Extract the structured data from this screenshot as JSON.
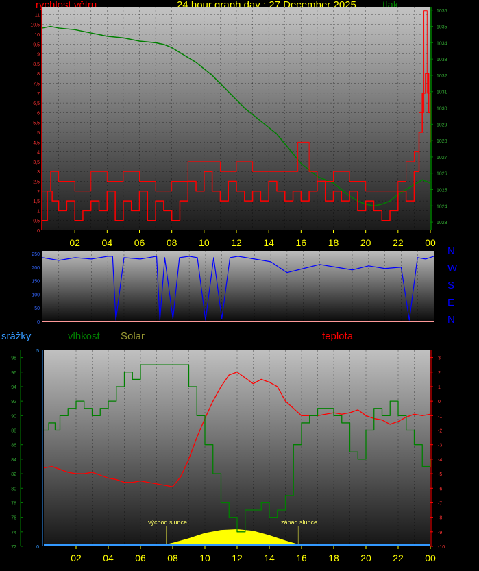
{
  "colors": {
    "wind": "#ff0000",
    "pressure": "#008000",
    "wind_dir": "#0000ff",
    "humidity": "#008000",
    "temperature": "#ff0000",
    "solar": "#ffff00",
    "rain": "#3399ff",
    "axis_hour": "#ffff00",
    "compass": "#0000ff"
  },
  "header": {
    "wind_title": "rychlost větru",
    "graph_title": "24 hour graph day : 27 December 2025",
    "pressure_title": "tlak"
  },
  "hour_ticks": [
    "02",
    "04",
    "06",
    "08",
    "10",
    "12",
    "14",
    "16",
    "18",
    "20",
    "22",
    "00"
  ],
  "compass": [
    "N",
    "W",
    "S",
    "E",
    "N"
  ],
  "lower_titles": {
    "rain": "srážky",
    "humidity": "vlhkost",
    "solar": "Solar",
    "temperature": "teplota"
  },
  "annotations": {
    "sunrise": "východ slunce",
    "sunset": "západ slunce"
  },
  "chart_data": [
    {
      "type": "line",
      "name": "wind-pressure",
      "x_unit": "hour",
      "xlim": [
        0,
        24
      ],
      "y_left": {
        "ticks": [
          "0",
          "0,5",
          "1",
          "1,5",
          "2",
          "2,5",
          "3",
          "3,5",
          "4",
          "4,5",
          "5",
          "5,5",
          "6",
          "6,5",
          "7",
          "7,5",
          "8",
          "8,5",
          "9",
          "9,5",
          "10",
          "10,5",
          "11"
        ],
        "ylim": [
          0,
          11.4
        ]
      },
      "y_right": {
        "ticks": [
          "1023",
          "1024",
          "1025",
          "1026",
          "1027",
          "1028",
          "1029",
          "1030",
          "1031",
          "1032",
          "1033",
          "1034",
          "1035",
          "1036"
        ],
        "ylim": [
          1022.5,
          1036.2
        ]
      },
      "series": [
        {
          "name": "rychlost větru",
          "axis": "left",
          "x": [
            0,
            0.3,
            0.6,
            1,
            1.5,
            2,
            2.5,
            3,
            3.5,
            4,
            4.5,
            5,
            5.5,
            6,
            6.5,
            7,
            7.5,
            8,
            8.5,
            9,
            9.5,
            10,
            10.5,
            11,
            11.5,
            12,
            12.5,
            13,
            13.5,
            14,
            14.5,
            15,
            15.5,
            16,
            16.5,
            17,
            17.5,
            18,
            18.5,
            19,
            19.5,
            20,
            20.5,
            21,
            21.5,
            22,
            22.5,
            23,
            23.3,
            23.5,
            23.7,
            23.9,
            24
          ],
          "y": [
            0.5,
            2,
            1.5,
            1,
            1.5,
            0.5,
            1,
            1.5,
            1,
            2,
            0.5,
            1.5,
            1,
            2,
            0.5,
            1.5,
            1,
            0.5,
            1.5,
            2.5,
            2,
            3,
            2,
            1.5,
            2.5,
            2,
            1.5,
            2,
            1.5,
            2.5,
            2,
            1.5,
            2,
            1.5,
            2,
            2.5,
            1.5,
            2,
            1.5,
            2,
            1,
            1.5,
            1,
            0.5,
            1,
            2,
            1.5,
            3,
            5,
            7,
            8,
            6,
            4.5
          ]
        },
        {
          "name": "wind gust",
          "axis": "left",
          "x": [
            0,
            0.5,
            1,
            2,
            3,
            4,
            5,
            6,
            7,
            8,
            9,
            10,
            11,
            12,
            13,
            14,
            15,
            15.8,
            16.5,
            17,
            18,
            19,
            20,
            21,
            22,
            22.5,
            23,
            23.3,
            23.6,
            23.8,
            24
          ],
          "y": [
            2,
            3,
            2.5,
            2,
            3,
            2.5,
            3,
            2.5,
            2,
            2.5,
            3.5,
            3.5,
            3,
            3.5,
            3,
            3,
            3,
            4.5,
            3,
            2.5,
            3,
            2.5,
            2,
            2,
            2.5,
            3.5,
            4,
            6,
            11.2,
            7,
            5
          ]
        },
        {
          "name": "tlak",
          "axis": "right",
          "x": [
            0,
            0.5,
            1,
            2,
            3,
            4,
            5,
            6,
            7,
            7.5,
            8,
            8.5,
            9,
            9.5,
            10,
            10.5,
            11,
            11.5,
            12,
            12.5,
            13,
            13.5,
            14,
            14.5,
            15,
            15.5,
            16,
            16.5,
            17,
            17.5,
            18,
            18.5,
            19,
            19.5,
            20,
            20.5,
            21,
            21.5,
            22,
            22.5,
            23,
            23.5,
            24
          ],
          "y": [
            1034.9,
            1035,
            1034.9,
            1034.8,
            1034.6,
            1034.4,
            1034.3,
            1034.1,
            1034,
            1033.9,
            1033.7,
            1033.4,
            1033.1,
            1032.8,
            1032.4,
            1032,
            1031.5,
            1031,
            1030.5,
            1030,
            1029.6,
            1029.2,
            1028.8,
            1028.4,
            1027.8,
            1027.2,
            1026.6,
            1026.2,
            1025.8,
            1025.6,
            1025.4,
            1025,
            1024.6,
            1024.3,
            1024.1,
            1024,
            1024.1,
            1024.3,
            1024.7,
            1025,
            1025.3,
            1025.6,
            1025.4
          ]
        }
      ]
    },
    {
      "type": "line",
      "name": "wind-direction",
      "x_unit": "hour",
      "xlim": [
        0,
        24
      ],
      "y": {
        "ticks": [
          "0",
          "50",
          "100",
          "150",
          "200",
          "250"
        ],
        "ylim": [
          0,
          260
        ]
      },
      "series": [
        {
          "name": "směr větru",
          "x": [
            0,
            1,
            2,
            3,
            4,
            4.3,
            4.5,
            5,
            6,
            7,
            7.2,
            7.5,
            8,
            8.4,
            9,
            9.5,
            10,
            10.5,
            11,
            11.5,
            12,
            12.5,
            13,
            13.5,
            14,
            14.5,
            15,
            16,
            17,
            18,
            19,
            20,
            21,
            22,
            22.5,
            23,
            23.5,
            24
          ],
          "y": [
            235,
            225,
            235,
            230,
            240,
            240,
            5,
            235,
            230,
            240,
            5,
            235,
            10,
            235,
            240,
            235,
            5,
            235,
            10,
            235,
            240,
            235,
            230,
            225,
            220,
            200,
            180,
            195,
            210,
            200,
            190,
            205,
            195,
            200,
            5,
            235,
            230,
            240
          ]
        }
      ]
    },
    {
      "type": "line",
      "name": "temperature-humidity",
      "x_unit": "hour",
      "xlim": [
        0,
        24
      ],
      "y_humidity": {
        "ticks": [
          "72",
          "74",
          "76",
          "78",
          "80",
          "82",
          "84",
          "86",
          "88",
          "90",
          "92",
          "94",
          "96",
          "98"
        ],
        "ylim": [
          72,
          99
        ]
      },
      "y_rain": {
        "ticks": [
          "0",
          "5"
        ],
        "ylim": [
          0,
          5
        ]
      },
      "y_temperature": {
        "ticks": [
          "-10",
          "-9",
          "-8",
          "-7",
          "-6",
          "-5",
          "-4",
          "-3",
          "-2",
          "-1",
          "0",
          "1",
          "2",
          "3"
        ],
        "ylim": [
          -10,
          3.5
        ]
      },
      "series": [
        {
          "name": "vlhkost",
          "axis": "humidity",
          "x": [
            0,
            0.3,
            0.7,
            1,
            1.5,
            2,
            2.5,
            3,
            3.5,
            4,
            4.5,
            5,
            5.5,
            6,
            6.5,
            7,
            7.5,
            8,
            8.5,
            9,
            9.5,
            10,
            10.5,
            11,
            11.5,
            12,
            12.5,
            13,
            13.5,
            14,
            14.5,
            15,
            15.5,
            16,
            16.5,
            17,
            17.5,
            18,
            18.5,
            19,
            19.5,
            20,
            20.5,
            21,
            21.5,
            22,
            22.5,
            23,
            23.5,
            24
          ],
          "y": [
            88,
            89,
            88,
            90,
            91,
            92,
            91,
            90,
            91,
            92,
            94,
            96,
            95,
            97,
            97,
            97,
            97,
            97,
            97,
            94,
            90,
            86,
            82,
            78,
            76,
            74,
            77,
            77,
            78,
            76,
            77,
            79,
            86,
            89,
            90,
            91,
            91,
            90,
            89,
            85,
            84,
            88,
            91,
            90,
            92,
            90,
            88,
            86,
            83,
            84
          ]
        },
        {
          "name": "teplota",
          "axis": "temperature",
          "x": [
            0,
            0.5,
            1,
            1.5,
            2,
            2.5,
            3,
            3.5,
            4,
            4.5,
            5,
            5.5,
            6,
            6.5,
            7,
            7.5,
            8,
            8.5,
            9,
            9.5,
            10,
            10.5,
            11,
            11.5,
            12,
            12.5,
            13,
            13.5,
            14,
            14.5,
            15,
            15.5,
            16,
            16.5,
            17,
            17.5,
            18,
            18.5,
            19,
            19.5,
            20,
            20.5,
            21,
            21.5,
            22,
            22.5,
            23,
            23.5,
            24
          ],
          "y": [
            -4.6,
            -4.5,
            -4.7,
            -4.9,
            -5,
            -5,
            -4.9,
            -5.1,
            -5.3,
            -5.4,
            -5.6,
            -5.6,
            -5.5,
            -5.6,
            -5.7,
            -5.8,
            -5.9,
            -5.2,
            -4,
            -2.5,
            -1.2,
            0,
            1,
            1.8,
            2,
            1.6,
            1.2,
            1.5,
            1.3,
            1,
            0,
            -0.5,
            -1,
            -1,
            -1,
            -0.9,
            -0.8,
            -0.9,
            -0.8,
            -0.6,
            -1,
            -1.2,
            -1.3,
            -1.6,
            -1.4,
            -1.1,
            -0.9,
            -1,
            -0.9
          ]
        },
        {
          "name": "Solar",
          "axis": "solar",
          "x": [
            7.6,
            8,
            9,
            10,
            11,
            12,
            13,
            14,
            15,
            15.8
          ],
          "y": [
            0,
            0.1,
            0.4,
            0.75,
            0.95,
            1,
            0.9,
            0.6,
            0.25,
            0
          ]
        },
        {
          "name": "srážky",
          "axis": "rain",
          "x": [
            0,
            24
          ],
          "y": [
            0,
            0
          ]
        }
      ]
    }
  ]
}
